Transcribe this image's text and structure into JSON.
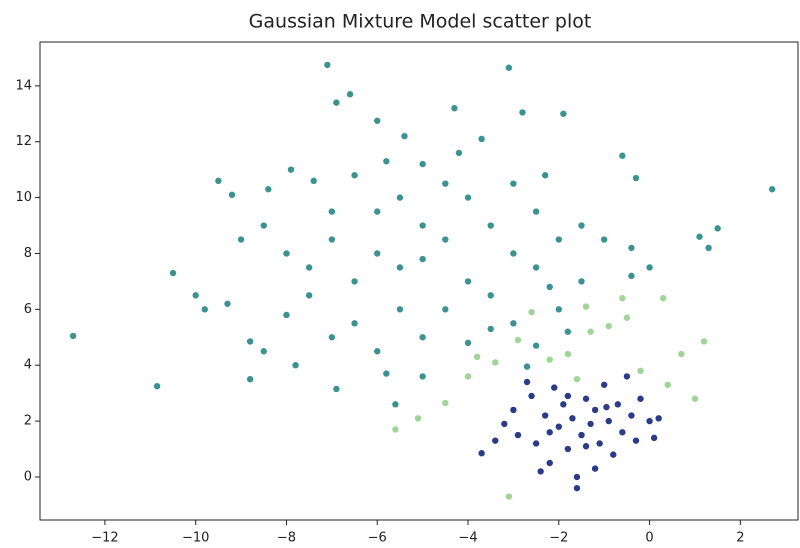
{
  "chart_data": {
    "type": "scatter",
    "title": "Gaussian Mixture Model scatter plot",
    "xlim": [
      -13.43,
      3.27
    ],
    "ylim": [
      -1.54,
      15.57
    ],
    "xticks": [
      {
        "value": -12,
        "label": "−12"
      },
      {
        "value": -10,
        "label": "−10"
      },
      {
        "value": -8,
        "label": "−8"
      },
      {
        "value": -6,
        "label": "−6"
      },
      {
        "value": -4,
        "label": "−4"
      },
      {
        "value": -2,
        "label": "−2"
      },
      0,
      2
    ],
    "yticks": [
      0,
      2,
      4,
      6,
      8,
      10,
      12,
      14
    ],
    "series": [
      {
        "color": "#3a9391",
        "x": [
          -12.7,
          -10.85,
          2.7,
          -7.1,
          -3.1,
          -6.9,
          -6.6,
          -4.3,
          -2.8,
          -1.9,
          -6,
          -5.4,
          -3.7,
          -0.6,
          -9.5,
          -9.2,
          -8.4,
          -7.9,
          -0.3,
          1.1,
          1.5,
          1.3,
          -10.5,
          -10,
          -9.8,
          -9.3,
          -8.8,
          -8.5,
          -8.8,
          -7.8,
          -6.9,
          -5.6,
          -2.7,
          -2.5,
          0,
          -0.4,
          -0.4,
          -1,
          -2.3,
          -4.2,
          -5,
          -5.8,
          -6.5,
          -7.4,
          -6,
          -5.5,
          -5,
          -4.5,
          -4,
          -3.5,
          -3,
          -6.5,
          -7,
          -7.5,
          -6,
          -5,
          -4,
          -3.5,
          -2.5,
          -2,
          -1.5,
          -2,
          -3,
          -4.5,
          -5.5,
          -6.5,
          -7.5,
          -8,
          -8.5,
          -9,
          -7,
          -5.5,
          -4.5,
          -3,
          -2.5,
          -1.5,
          -6,
          -5,
          -4,
          -3.5,
          -7,
          -8,
          -5.8,
          -5,
          -2.2,
          -1.8
        ],
        "values": [
          5.05,
          3.25,
          10.3,
          14.75,
          14.65,
          13.4,
          13.7,
          13.2,
          13.05,
          13,
          12.75,
          12.2,
          12.1,
          11.5,
          10.6,
          10.1,
          10.3,
          11,
          10.7,
          8.6,
          8.9,
          8.2,
          7.3,
          6.5,
          6,
          6.2,
          4.85,
          4.5,
          3.5,
          4,
          3.15,
          2.6,
          3.95,
          4.7,
          7.5,
          7.2,
          8.2,
          8.5,
          10.8,
          11.6,
          11.2,
          11.3,
          10.8,
          10.6,
          8,
          7.5,
          7.8,
          8.5,
          7,
          9,
          8,
          7,
          8.5,
          7.5,
          9.5,
          9,
          10,
          6.5,
          7.5,
          8.5,
          7,
          6,
          5.5,
          6,
          6,
          5.5,
          6.5,
          8,
          9,
          8.5,
          9.5,
          10,
          10.5,
          10.5,
          9.5,
          9,
          4.5,
          5,
          4.8,
          5.3,
          5,
          5.8,
          3.7,
          3.6,
          6.8,
          5.2
        ]
      },
      {
        "color": "#2b3b8a",
        "x": [
          -3.7,
          -3.2,
          -3,
          -2.9,
          -2.6,
          -2.5,
          -2.3,
          -2.2,
          -2.1,
          -2,
          -1.9,
          -1.8,
          -1.7,
          -1.6,
          -1.5,
          -1.4,
          -1.3,
          -1.2,
          -1.1,
          -1,
          -0.9,
          -0.8,
          -0.7,
          -0.6,
          -0.5,
          -0.4,
          -0.3,
          -0.2,
          0,
          0.2,
          0.1,
          -1.6,
          -2.4,
          -1.2,
          -2.7,
          -1.8,
          -2.2,
          -1.4,
          -0.95,
          -3.4
        ],
        "values": [
          0.85,
          1.9,
          2.4,
          1.5,
          2.9,
          1.2,
          2.2,
          0.5,
          3.2,
          1.8,
          2.6,
          1,
          2.1,
          0,
          1.5,
          2.8,
          1.9,
          2.4,
          1.2,
          3.3,
          2,
          0.8,
          2.6,
          1.6,
          3.6,
          2.2,
          1.3,
          2.8,
          2,
          2.1,
          1.4,
          -0.4,
          0.2,
          0.3,
          3.4,
          2.9,
          1.6,
          1.1,
          2.5,
          1.3
        ]
      },
      {
        "color": "#9fd597",
        "x": [
          -3.1,
          -5.6,
          -4.5,
          -5.1,
          -4,
          -3.8,
          -3.4,
          -2.9,
          -2.6,
          -2.2,
          -1.8,
          -1.6,
          -1.3,
          -1.4,
          -0.9,
          -0.6,
          -0.5,
          -0.2,
          0.3,
          0.4,
          0.7,
          1,
          1.2
        ],
        "values": [
          -0.7,
          1.7,
          2.65,
          2.1,
          3.6,
          4.3,
          4.1,
          4.9,
          5.9,
          4.2,
          4.4,
          3.5,
          5.2,
          6.1,
          5.4,
          6.4,
          5.7,
          3.8,
          6.4,
          3.3,
          4.4,
          2.8,
          4.85
        ]
      }
    ]
  }
}
